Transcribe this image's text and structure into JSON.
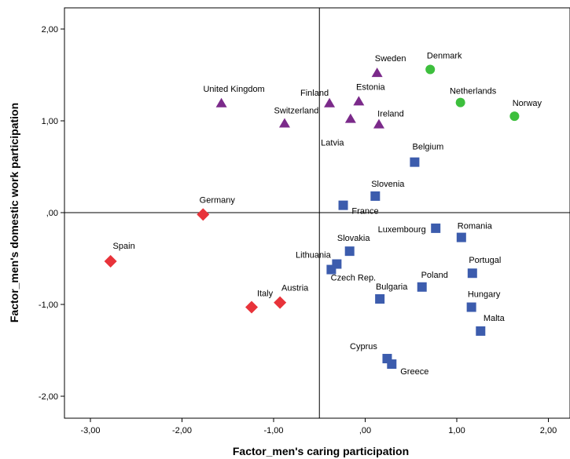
{
  "chart_data": {
    "type": "scatter",
    "xlabel": "Factor_men's caring participation",
    "ylabel": "Factor_men's domestic work participation",
    "xlim": [
      -3.3,
      2.2
    ],
    "ylim": [
      -2.25,
      2.25
    ],
    "x_ticks": [
      -3,
      -2,
      -1,
      0,
      1,
      2
    ],
    "y_ticks": [
      -2,
      -1,
      0,
      1,
      2
    ],
    "x_tick_labels": [
      "-3,00",
      "-2,00",
      "-1,00",
      ",00",
      "1,00",
      "2,00"
    ],
    "y_tick_labels": [
      "-2,00",
      "-1,00",
      ",00",
      "1,00",
      "2,00"
    ],
    "reference_lines": {
      "x": -0.5,
      "y": 0.0
    },
    "grid": false,
    "legend": "none",
    "groups": [
      {
        "marker": "triangle",
        "color": "#7b2a8a"
      },
      {
        "marker": "circle",
        "color": "#3dbf3d"
      },
      {
        "marker": "square",
        "color": "#3c5cad"
      },
      {
        "marker": "diamond",
        "color": "#e8333a"
      }
    ],
    "points": [
      {
        "label": "Sweden",
        "x": 0.13,
        "y": 1.52,
        "group": 0
      },
      {
        "label": "United Kingdom",
        "x": -1.57,
        "y": 1.19,
        "group": 0
      },
      {
        "label": "Finland",
        "x": -0.39,
        "y": 1.19,
        "group": 0
      },
      {
        "label": "Estonia",
        "x": -0.07,
        "y": 1.21,
        "group": 0
      },
      {
        "label": "Switzerland",
        "x": -0.88,
        "y": 0.97,
        "group": 0
      },
      {
        "label": "Latvia",
        "x": -0.16,
        "y": 1.02,
        "group": 0
      },
      {
        "label": "Ireland",
        "x": 0.15,
        "y": 0.96,
        "group": 0
      },
      {
        "label": "Denmark",
        "x": 0.71,
        "y": 1.56,
        "group": 1
      },
      {
        "label": "Netherlands",
        "x": 1.04,
        "y": 1.2,
        "group": 1
      },
      {
        "label": "Norway",
        "x": 1.63,
        "y": 1.05,
        "group": 1
      },
      {
        "label": "Belgium",
        "x": 0.54,
        "y": 0.55,
        "group": 2
      },
      {
        "label": "Slovenia",
        "x": 0.11,
        "y": 0.18,
        "group": 2
      },
      {
        "label": "France",
        "x": -0.24,
        "y": 0.08,
        "group": 2
      },
      {
        "label": "Luxembourg",
        "x": 0.77,
        "y": -0.17,
        "group": 2
      },
      {
        "label": "Romania",
        "x": 1.05,
        "y": -0.27,
        "group": 2
      },
      {
        "label": "Slovakia",
        "x": -0.17,
        "y": -0.42,
        "group": 2
      },
      {
        "label": "Lithuania",
        "x": -0.31,
        "y": -0.56,
        "group": 2
      },
      {
        "label": "Czech Rep.",
        "x": -0.37,
        "y": -0.62,
        "group": 2
      },
      {
        "label": "Portugal",
        "x": 1.17,
        "y": -0.66,
        "group": 2
      },
      {
        "label": "Poland",
        "x": 0.62,
        "y": -0.81,
        "group": 2
      },
      {
        "label": "Bulgaria",
        "x": 0.16,
        "y": -0.94,
        "group": 2
      },
      {
        "label": "Hungary",
        "x": 1.16,
        "y": -1.03,
        "group": 2
      },
      {
        "label": "Malta",
        "x": 1.26,
        "y": -1.29,
        "group": 2
      },
      {
        "label": "Cyprus",
        "x": 0.24,
        "y": -1.59,
        "group": 2
      },
      {
        "label": "Greece",
        "x": 0.29,
        "y": -1.65,
        "group": 2
      },
      {
        "label": "Germany",
        "x": -1.77,
        "y": -0.02,
        "group": 3
      },
      {
        "label": "Spain",
        "x": -2.78,
        "y": -0.53,
        "group": 3
      },
      {
        "label": "Italy",
        "x": -1.24,
        "y": -1.03,
        "group": 3
      },
      {
        "label": "Austria",
        "x": -0.93,
        "y": -0.98,
        "group": 3
      }
    ]
  }
}
